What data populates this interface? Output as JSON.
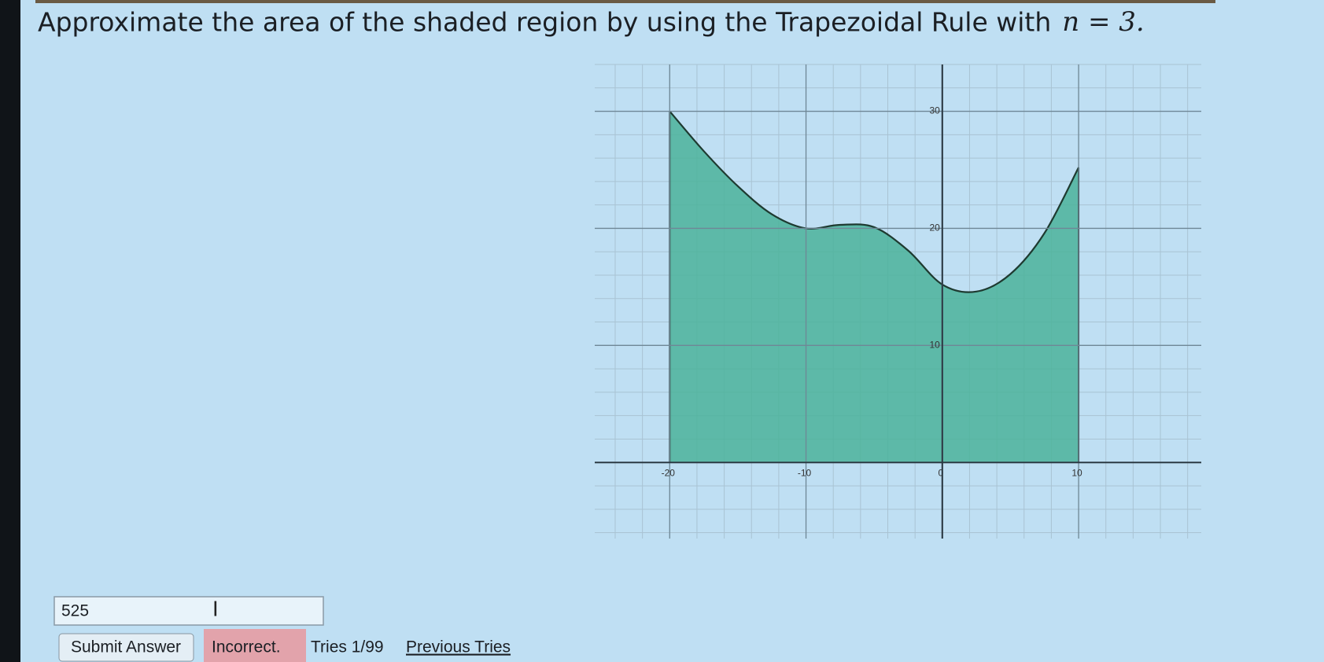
{
  "question": {
    "text": "Approximate the area of the shaded region by using the Trapezoidal Rule with",
    "math": "n = 3."
  },
  "graph": {
    "type": "area",
    "x": [
      -20,
      -17.5,
      -15,
      -12.5,
      -10,
      -7.5,
      -5,
      -2.5,
      0,
      2.5,
      5,
      7.5,
      10
    ],
    "values": [
      30,
      26.6,
      23.6,
      21.2,
      20,
      20.3,
      20.1,
      18.1,
      15.2,
      14.6,
      16.1,
      19.6,
      25.2
    ],
    "color": "#4bb39a",
    "line_color": "#1e3a30",
    "xlim": [
      -25.5,
      19
    ],
    "ylim": [
      -6.5,
      34
    ],
    "xticks": [
      -20,
      -10,
      0,
      10
    ],
    "yticks": [
      10,
      20,
      30
    ],
    "grid": true
  },
  "answer": {
    "value": "525"
  },
  "controls": {
    "submit": "Submit Answer",
    "status": "Incorrect.",
    "tries": "Tries 1/99",
    "previous": "Previous Tries"
  }
}
